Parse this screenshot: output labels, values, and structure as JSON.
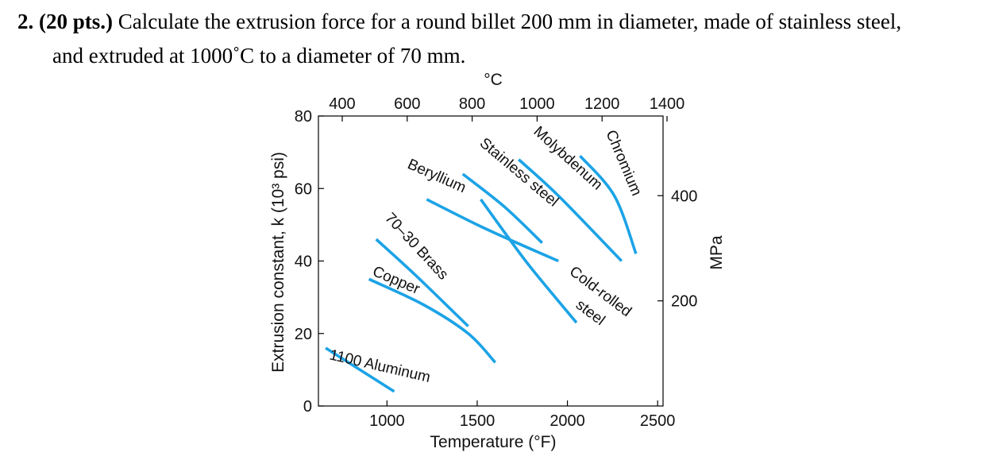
{
  "problem": {
    "number": "2.",
    "points": "(20 pts.)",
    "text_line1": " Calculate the extrusion force for a round billet 200 mm in diameter, made of stainless steel,",
    "text_line2": "and extruded at 1000˚C to a diameter of 70 mm."
  },
  "chart_data": {
    "type": "line",
    "title": "",
    "xlabel": "Temperature (°F)",
    "ylabel": "Extrusion constant, k (10³ psi)",
    "x2label": "°C",
    "y2label": "MPa",
    "xlim": [
      620,
      2530
    ],
    "ylim": [
      0,
      80
    ],
    "x_ticks": [
      1000,
      1500,
      2000,
      2500
    ],
    "y_ticks": [
      0,
      20,
      40,
      60,
      80
    ],
    "x2_ticks": [
      400,
      600,
      800,
      1000,
      1200,
      1400
    ],
    "y2_ticks": [
      200,
      400
    ],
    "grid": false,
    "series_color": "#1ca3e6",
    "series": [
      {
        "name": "1100 Aluminum",
        "x": [
          660,
          1040
        ],
        "y": [
          16,
          4
        ]
      },
      {
        "name": "Copper",
        "x": [
          900,
          1200,
          1450,
          1600
        ],
        "y": [
          35,
          28,
          20,
          12
        ]
      },
      {
        "name": "70–30 Brass",
        "x": [
          940,
          1160,
          1450
        ],
        "y": [
          46,
          36,
          22
        ]
      },
      {
        "name": "Beryllium",
        "x": [
          1220,
          1500,
          1720,
          1950
        ],
        "y": [
          57,
          50,
          45,
          40
        ]
      },
      {
        "name": "Stainless steel",
        "x": [
          1420,
          1650,
          1860
        ],
        "y": [
          64,
          55,
          45
        ]
      },
      {
        "name": "Molybdenum",
        "x": [
          1730,
          1950,
          2300
        ],
        "y": [
          68,
          58,
          40
        ]
      },
      {
        "name": "Chromium",
        "x": [
          2070,
          2260,
          2380
        ],
        "y": [
          69,
          58,
          42
        ]
      },
      {
        "name": "Cold-rolled steel",
        "x": [
          1520,
          1650,
          1800,
          2050
        ],
        "y": [
          57,
          48,
          38,
          23
        ]
      }
    ],
    "labels": {
      "aluminum": "1100 Aluminum",
      "copper": "Copper",
      "brass": "70–30 Brass",
      "beryllium": "Beryllium",
      "stainless": "Stainless steel",
      "molybdenum": "Molybdenum",
      "chromium": "Chromium",
      "cold_rolled_1": "Cold-rolled",
      "cold_rolled_2": "steel"
    }
  }
}
